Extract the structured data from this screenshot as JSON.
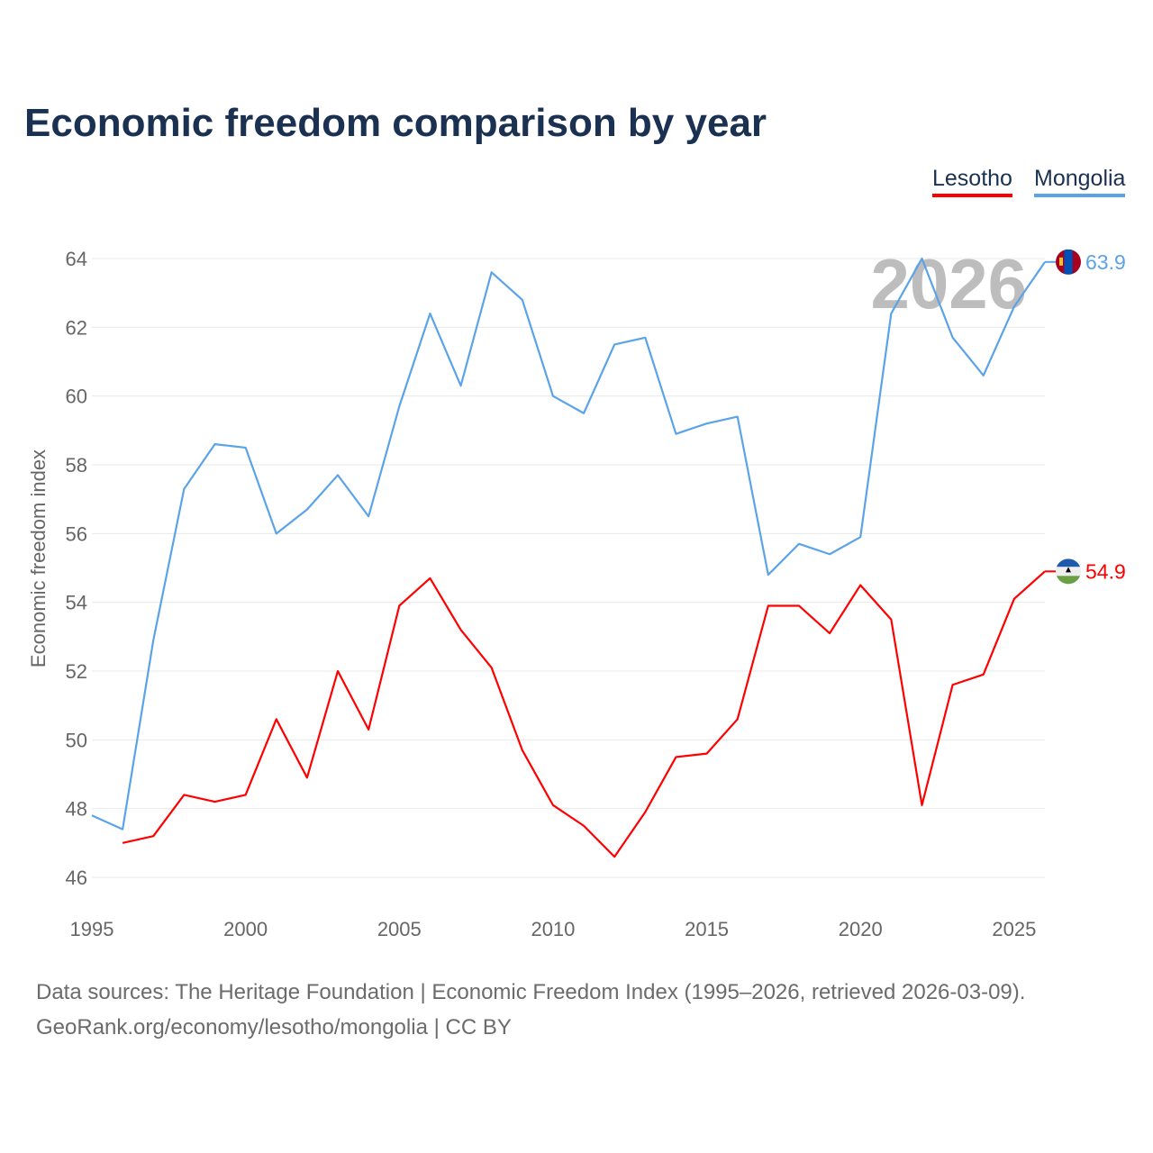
{
  "chart_data": {
    "type": "line",
    "title": "Economic freedom comparison by year",
    "xlabel": "",
    "ylabel": "Economic freedom index",
    "xlim": [
      1995,
      2026
    ],
    "ylim": [
      46,
      64
    ],
    "x_ticks": [
      1995,
      2000,
      2005,
      2010,
      2015,
      2020,
      2025
    ],
    "y_ticks": [
      46,
      48,
      50,
      52,
      54,
      56,
      58,
      60,
      62,
      64
    ],
    "grid": true,
    "legend_placement": "top-right",
    "year_watermark": "2026",
    "series": [
      {
        "name": "Lesotho",
        "color": "#ff0000",
        "end_label": "54.9",
        "x": [
          1996,
          1997,
          1998,
          1999,
          2000,
          2001,
          2002,
          2003,
          2004,
          2005,
          2006,
          2007,
          2008,
          2009,
          2010,
          2011,
          2012,
          2013,
          2014,
          2015,
          2016,
          2017,
          2018,
          2019,
          2020,
          2021,
          2022,
          2023,
          2024,
          2025,
          2026
        ],
        "values": [
          47.0,
          47.2,
          48.4,
          48.2,
          48.4,
          50.6,
          48.9,
          52.0,
          50.3,
          53.9,
          54.7,
          53.2,
          52.1,
          49.7,
          48.1,
          47.5,
          46.6,
          47.9,
          49.5,
          49.6,
          50.6,
          53.9,
          53.9,
          53.1,
          54.5,
          53.5,
          48.1,
          51.6,
          51.9,
          54.1,
          54.9
        ]
      },
      {
        "name": "Mongolia",
        "color": "#5ba3e8",
        "end_label": "63.9",
        "x": [
          1995,
          1996,
          1997,
          1998,
          1999,
          2000,
          2001,
          2002,
          2003,
          2004,
          2005,
          2006,
          2007,
          2008,
          2009,
          2010,
          2011,
          2012,
          2013,
          2014,
          2015,
          2016,
          2017,
          2018,
          2019,
          2020,
          2021,
          2022,
          2023,
          2024,
          2025,
          2026
        ],
        "values": [
          47.8,
          47.4,
          52.9,
          57.3,
          58.6,
          58.5,
          56.0,
          56.7,
          57.7,
          56.5,
          59.7,
          62.4,
          60.3,
          63.6,
          62.8,
          60.0,
          59.5,
          61.5,
          61.7,
          58.9,
          59.2,
          59.4,
          54.8,
          55.7,
          55.4,
          55.9,
          62.4,
          64.0,
          61.7,
          60.6,
          62.6,
          63.9
        ]
      }
    ]
  },
  "footer": {
    "sources": "Data sources: The Heritage Foundation | Economic Freedom Index (1995–2026, retrieved 2026-03-09).",
    "credit": "GeoRank.org/economy/lesotho/mongolia | CC BY"
  }
}
